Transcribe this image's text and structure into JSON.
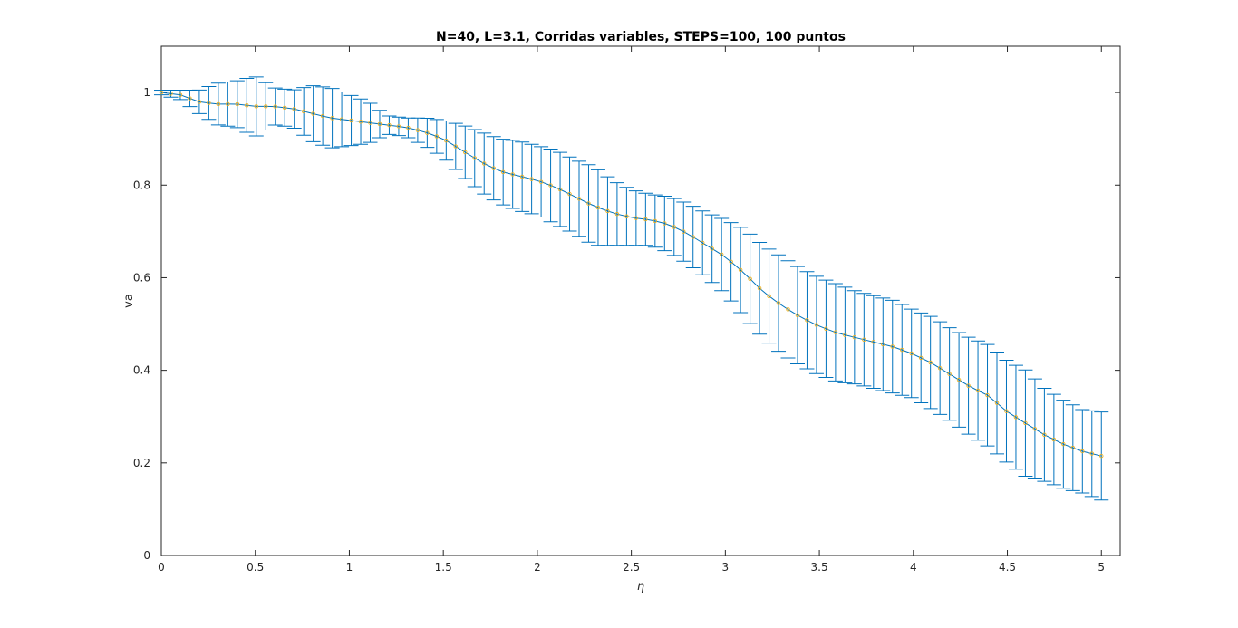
{
  "chart_data": {
    "type": "line",
    "title": "N=40, L=3.1, Corridas variables, STEPS=100, 100 puntos",
    "xlabel": "η",
    "ylabel": "va",
    "xlim": [
      0,
      5.1
    ],
    "ylim": [
      0,
      1.1
    ],
    "xticks": [
      0,
      0.5,
      1,
      1.5,
      2,
      2.5,
      3,
      3.5,
      4,
      4.5,
      5
    ],
    "xtick_labels": [
      "0",
      "0.5",
      "1",
      "1.5",
      "2",
      "2.5",
      "3",
      "3.5",
      "4",
      "4.5",
      "5"
    ],
    "yticks": [
      0,
      0.2,
      0.4,
      0.6,
      0.8,
      1
    ],
    "ytick_labels": [
      "0",
      "0.2",
      "0.4",
      "0.6",
      "0.8",
      "1"
    ],
    "grid": false,
    "legend": "none",
    "colors": {
      "errorbar": "#0072bd",
      "line": "#0072bd",
      "markers": "#edb120"
    },
    "key_points": {
      "x": [
        0,
        0.1,
        0.2,
        0.3,
        0.4,
        0.5,
        0.6,
        0.7,
        0.8,
        0.9,
        1.0,
        1.1,
        1.2,
        1.3,
        1.4,
        1.5,
        1.6,
        1.7,
        1.8,
        1.9,
        2.0,
        2.1,
        2.2,
        2.3,
        2.4,
        2.5,
        2.6,
        2.7,
        2.8,
        2.9,
        3.0,
        3.1,
        3.2,
        3.3,
        3.4,
        3.5,
        3.6,
        3.7,
        3.8,
        3.9,
        4.0,
        4.1,
        4.2,
        4.3,
        4.4,
        4.5,
        4.6,
        4.7,
        4.8,
        4.9,
        5.0
      ],
      "y": [
        1.0,
        0.995,
        0.98,
        0.975,
        0.975,
        0.97,
        0.97,
        0.965,
        0.955,
        0.945,
        0.94,
        0.935,
        0.93,
        0.925,
        0.915,
        0.9,
        0.875,
        0.85,
        0.83,
        0.82,
        0.81,
        0.795,
        0.775,
        0.755,
        0.74,
        0.73,
        0.725,
        0.715,
        0.695,
        0.67,
        0.645,
        0.61,
        0.57,
        0.54,
        0.515,
        0.495,
        0.48,
        0.47,
        0.46,
        0.45,
        0.435,
        0.415,
        0.39,
        0.365,
        0.345,
        0.31,
        0.285,
        0.26,
        0.24,
        0.225,
        0.215
      ]
    },
    "key_errors": {
      "x": [
        0,
        0.1,
        0.2,
        0.3,
        0.4,
        0.5,
        0.6,
        0.7,
        0.8,
        0.9,
        1.0,
        1.1,
        1.2,
        1.3,
        1.4,
        1.5,
        1.6,
        1.7,
        1.8,
        1.9,
        2.0,
        2.1,
        2.2,
        2.3,
        2.4,
        2.5,
        2.6,
        2.7,
        2.8,
        2.9,
        3.0,
        3.1,
        3.2,
        3.3,
        3.4,
        3.5,
        3.6,
        3.7,
        3.8,
        3.9,
        4.0,
        4.1,
        4.2,
        4.3,
        4.4,
        4.5,
        4.6,
        4.7,
        4.8,
        4.9,
        5.0
      ],
      "err": [
        0.005,
        0.01,
        0.025,
        0.045,
        0.05,
        0.065,
        0.04,
        0.04,
        0.06,
        0.065,
        0.055,
        0.045,
        0.02,
        0.02,
        0.03,
        0.04,
        0.055,
        0.065,
        0.07,
        0.075,
        0.075,
        0.08,
        0.08,
        0.085,
        0.07,
        0.06,
        0.055,
        0.06,
        0.065,
        0.07,
        0.08,
        0.095,
        0.1,
        0.105,
        0.105,
        0.105,
        0.105,
        0.1,
        0.1,
        0.1,
        0.095,
        0.1,
        0.1,
        0.105,
        0.11,
        0.11,
        0.115,
        0.1,
        0.095,
        0.09,
        0.095
      ]
    },
    "num_points": 100
  }
}
